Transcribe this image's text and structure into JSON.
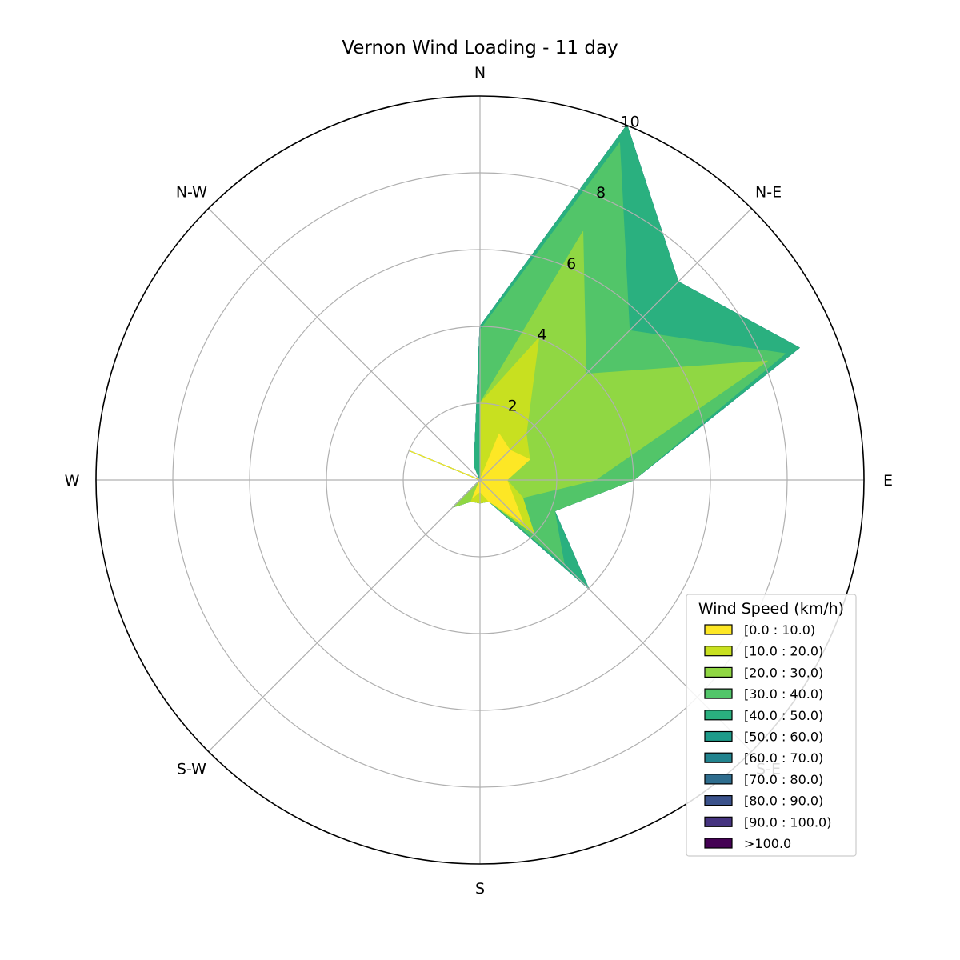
{
  "chart_data": {
    "type": "area",
    "subtype": "windrose",
    "title": "Vernon Wind Loading - 11 day",
    "direction_labels": [
      "N",
      "N-E",
      "E",
      "S-E",
      "S",
      "S-W",
      "W",
      "N-W"
    ],
    "radial_ticks": [
      2,
      4,
      6,
      8,
      10
    ],
    "rmax": 10,
    "grid": true,
    "legend_title": "Wind Speed (km/h)",
    "legend_position": "lower-right",
    "directions_deg": [
      0,
      22.5,
      45,
      67.5,
      90,
      112.5,
      135,
      157.5,
      180,
      202.5,
      225,
      247.5,
      270,
      292.5,
      315,
      337.5
    ],
    "series": [
      {
        "name": "[0.0 : 10.0)",
        "color": "#fde725",
        "values": [
          0.0,
          1.3,
          1.1,
          1.4,
          0.7,
          0.9,
          1.6,
          0.6,
          0.3,
          0.5,
          0.0,
          0.0,
          0.0,
          2.0,
          0.0,
          0.0
        ]
      },
      {
        "name": "[10.0 : 20.0)",
        "color": "#c8e020",
        "values": [
          2.0,
          4.0,
          1.7,
          1.4,
          0.7,
          1.2,
          2.0,
          0.6,
          0.6,
          0.6,
          0.0,
          0.0,
          0.0,
          2.0,
          0.0,
          0.0
        ]
      },
      {
        "name": "[20.0 : 30.0)",
        "color": "#90d743",
        "values": [
          2.0,
          7.0,
          3.9,
          8.1,
          3.0,
          1.2,
          2.0,
          0.6,
          0.6,
          0.6,
          1.0,
          0.0,
          0.0,
          2.0,
          0.0,
          0.0
        ]
      },
      {
        "name": "[30.0 : 40.0)",
        "color": "#52c569",
        "values": [
          3.9,
          9.5,
          5.5,
          8.6,
          4.0,
          2.1,
          3.1,
          0.6,
          0.6,
          0.6,
          1.0,
          0.0,
          0.0,
          2.0,
          0.0,
          0.0
        ]
      },
      {
        "name": "[40.0 : 50.0)",
        "color": "#2ab07f",
        "values": [
          4.0,
          10.0,
          7.3,
          9.0,
          4.0,
          2.1,
          4.0,
          0.6,
          0.6,
          0.6,
          1.0,
          0.0,
          0.0,
          2.0,
          0.0,
          0.4
        ]
      },
      {
        "name": "[50.0 : 60.0)",
        "color": "#1e9b8a",
        "values": [
          4.0,
          10.0,
          7.3,
          9.0,
          4.0,
          2.1,
          4.0,
          0.6,
          0.6,
          0.6,
          1.0,
          0.0,
          0.0,
          2.0,
          0.0,
          0.4
        ]
      },
      {
        "name": "[60.0 : 70.0)",
        "color": "#21838e",
        "values": [
          4.0,
          10.0,
          7.3,
          9.0,
          4.0,
          2.1,
          4.0,
          0.6,
          0.6,
          0.6,
          1.0,
          0.0,
          0.0,
          2.0,
          0.0,
          0.4
        ]
      },
      {
        "name": "[70.0 : 80.0)",
        "color": "#2e6d8e",
        "values": [
          4.0,
          10.0,
          7.3,
          9.0,
          4.0,
          2.1,
          4.0,
          0.6,
          0.6,
          0.6,
          1.0,
          0.0,
          0.0,
          2.0,
          0.0,
          0.4
        ]
      },
      {
        "name": "[80.0 : 90.0)",
        "color": "#3b528b",
        "values": [
          4.0,
          10.0,
          7.3,
          9.0,
          4.0,
          2.1,
          4.0,
          0.6,
          0.6,
          0.6,
          1.0,
          0.0,
          0.0,
          2.0,
          0.0,
          0.4
        ]
      },
      {
        "name": "[90.0 : 100.0)",
        "color": "#463480",
        "values": [
          4.0,
          10.0,
          7.3,
          9.0,
          4.0,
          2.1,
          4.0,
          0.6,
          0.6,
          0.6,
          1.0,
          0.0,
          0.0,
          2.0,
          0.0,
          0.4
        ]
      },
      {
        "name": ">100.0",
        "color": "#440154",
        "values": [
          4.0,
          10.0,
          7.3,
          9.0,
          4.0,
          2.1,
          4.0,
          0.6,
          0.6,
          0.6,
          1.0,
          0.0,
          0.0,
          2.0,
          0.0,
          0.4
        ]
      }
    ]
  }
}
